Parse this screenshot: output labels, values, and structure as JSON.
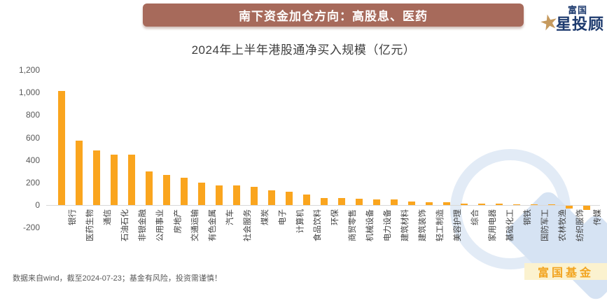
{
  "header": {
    "banner_title": "南下资金加仓方向：高股息、医药",
    "logo": {
      "brand_small": "富国",
      "brand_main": "星投顾",
      "icon": "star-icon"
    }
  },
  "chart_data": {
    "type": "bar",
    "title": "2024年上半年港股通净买入规模（亿元）",
    "categories": [
      "银行",
      "医药生物",
      "通信",
      "石油石化",
      "非银金融",
      "公用事业",
      "房地产",
      "交通运输",
      "有色金属",
      "汽车",
      "社会服务",
      "煤炭",
      "电子",
      "计算机",
      "食品饮料",
      "环保",
      "商贸零售",
      "机械设备",
      "电力设备",
      "建筑材料",
      "建筑装饰",
      "轻工制造",
      "美容护理",
      "综合",
      "家用电器",
      "基础化工",
      "钢铁",
      "国防军工",
      "农林牧渔",
      "纺织服饰",
      "传媒"
    ],
    "values": [
      1014,
      573,
      483,
      449,
      447,
      298,
      266,
      245,
      200,
      174,
      172,
      160,
      130,
      121,
      93,
      64,
      62,
      55,
      50,
      48,
      31,
      27,
      23,
      15,
      14,
      12,
      8,
      7,
      4,
      -25,
      -36
    ],
    "ylim": [
      -200,
      1200
    ],
    "yticks": [
      1200,
      1000,
      800,
      600,
      400,
      200,
      0,
      -200
    ],
    "ytick_labels": [
      "1,200",
      "1,000",
      "800",
      "600",
      "400",
      "200",
      "0",
      "-200"
    ],
    "grid": false,
    "legend": "none",
    "bar_color": "#faa51e"
  },
  "footer": {
    "note": "数据来自wind，截至2024-07-23；基金有风险，投资需谨慎！"
  },
  "watermark": {
    "text": "富国基金"
  },
  "colors": {
    "banner_bg": "#a76a5b",
    "banner_text": "#ffffff",
    "bar": "#faa51e",
    "axis_line": "#d9d9d9",
    "logo_navy": "#1d3a6e",
    "logo_gold": "#c69a5e",
    "watermark_blue": "#d6e3f3",
    "watermark_band_bg": "#fbf2cf",
    "watermark_band_text": "#f2a41f"
  }
}
